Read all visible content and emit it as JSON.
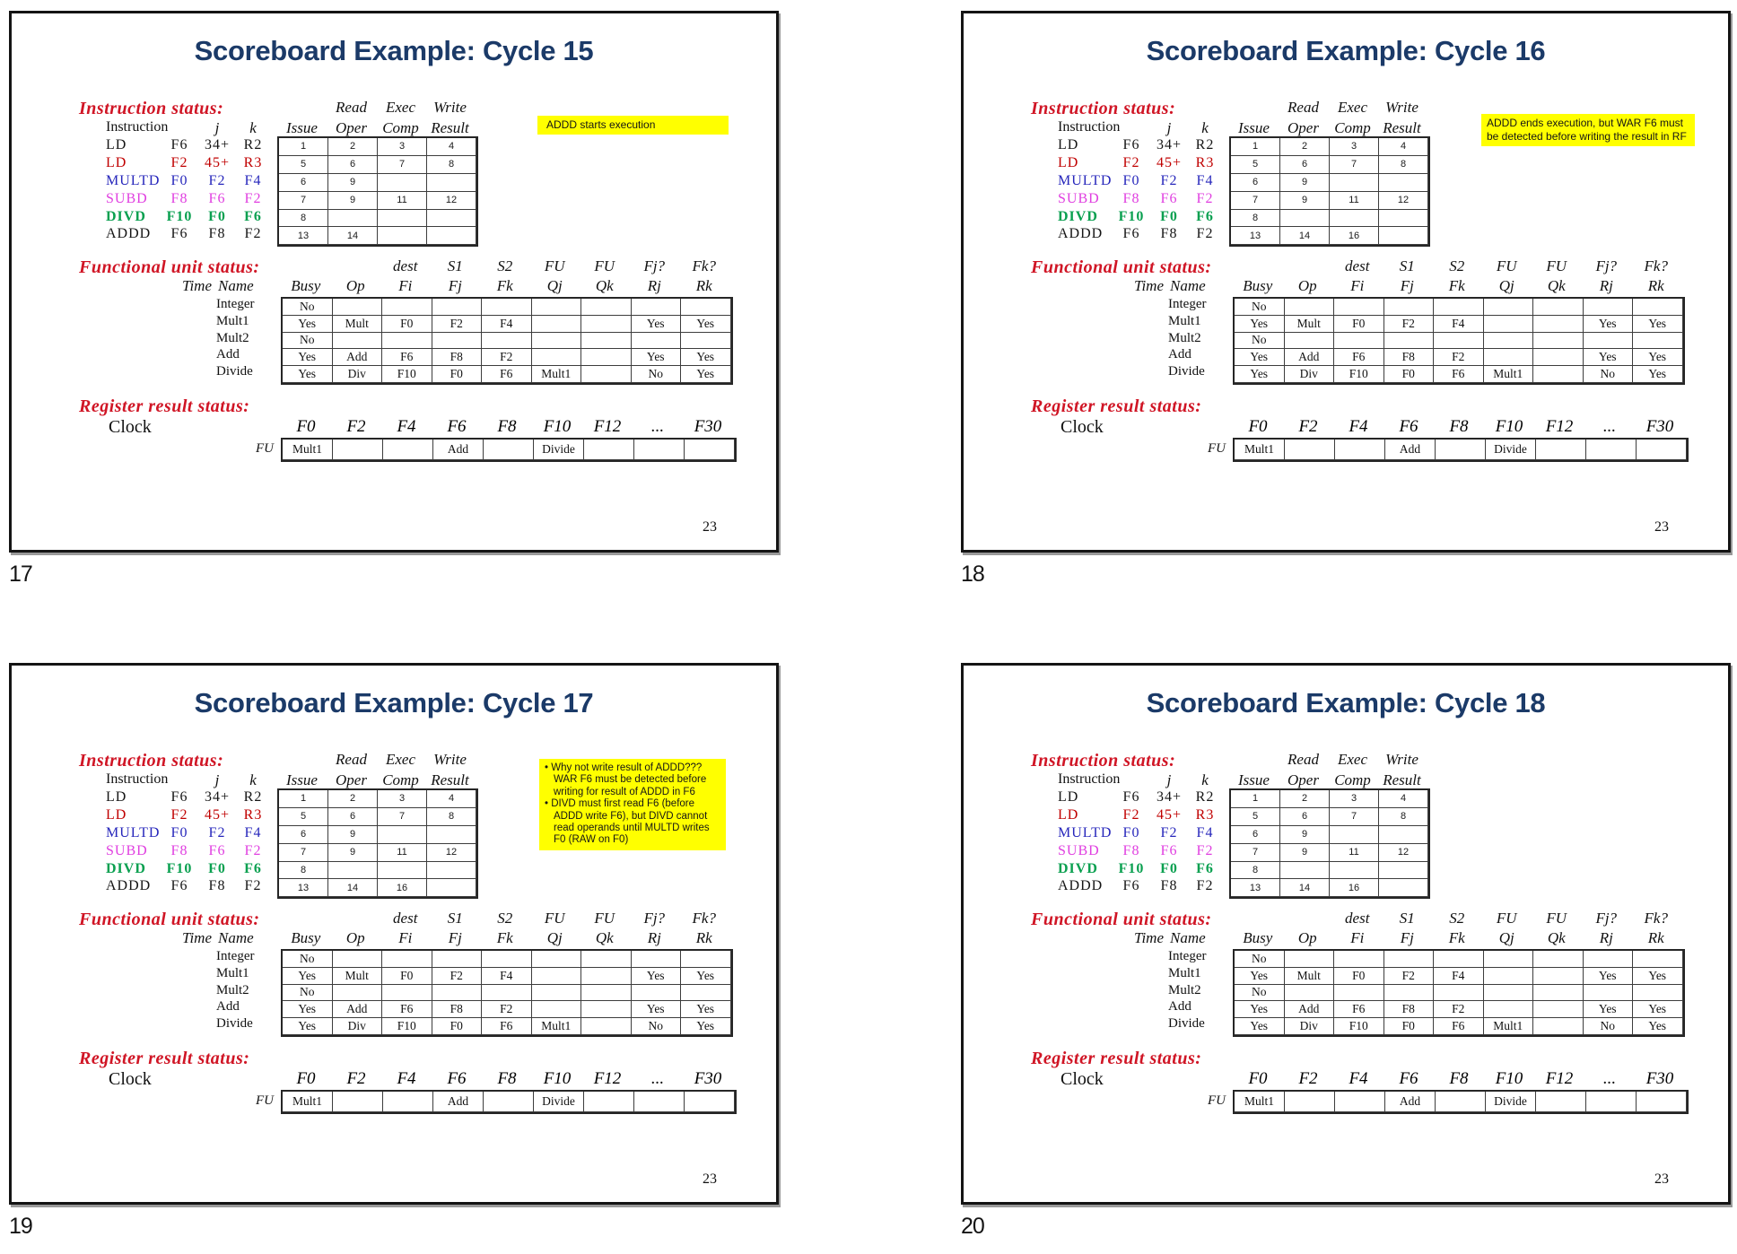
{
  "colors": {
    "title": "#1b3a68",
    "heading_red": "#d01525",
    "instr_red": "#c00000",
    "instr_blue": "#2626bb",
    "instr_magenta": "#e03fe0",
    "instr_green": "#0aa050",
    "note_bg": "#ffff00"
  },
  "page": {
    "slide_numbers": [
      "17",
      "18",
      "19",
      "20"
    ],
    "page_number": "23",
    "bullet_char": "•"
  },
  "shared": {
    "headings": {
      "instruction": "Instruction status:",
      "functional": "Functional unit status:",
      "register": "Register result status:"
    },
    "instr": {
      "h1": [
        "Read",
        "Exec",
        "Write"
      ],
      "h2": {
        "instruction": "Instruction",
        "j": "j",
        "k": "k",
        "cols": [
          "Issue",
          "Oper",
          "Comp",
          "Result"
        ]
      },
      "rows": [
        {
          "name": "LD",
          "i": "F6",
          "j": "34+",
          "k": "R2",
          "color": "black"
        },
        {
          "name": "LD",
          "i": "F2",
          "j": "45+",
          "k": "R3",
          "color": "red"
        },
        {
          "name": "MULTD",
          "i": "F0",
          "j": "F2",
          "k": "F4",
          "color": "blue"
        },
        {
          "name": "SUBD",
          "i": "F8",
          "j": "F6",
          "k": "F2",
          "color": "magenta"
        },
        {
          "name": "DIVD",
          "i": "F10",
          "j": "F0",
          "k": "F6",
          "color": "green"
        },
        {
          "name": "ADDD",
          "i": "F6",
          "j": "F8",
          "k": "F2",
          "color": "black"
        }
      ]
    },
    "fu": {
      "h1": [
        "dest",
        "S1",
        "S2",
        "FU",
        "FU",
        "Fj?",
        "Fk?"
      ],
      "h2": {
        "time": "Time",
        "name": "Name",
        "cols": [
          "Busy",
          "Op",
          "Fi",
          "Fj",
          "Fk",
          "Qj",
          "Qk",
          "Rj",
          "Rk"
        ]
      },
      "rows": [
        {
          "name": "Integer",
          "cells": [
            "No",
            "",
            "",
            "",
            "",
            "",
            "",
            "",
            ""
          ]
        },
        {
          "name": "Mult1",
          "cells": [
            "Yes",
            "Mult",
            "F0",
            "F2",
            "F4",
            "",
            "",
            "Yes",
            "Yes"
          ]
        },
        {
          "name": "Mult2",
          "cells": [
            "No",
            "",
            "",
            "",
            "",
            "",
            "",
            "",
            ""
          ]
        },
        {
          "name": "Add",
          "cells": [
            "Yes",
            "Add",
            "F6",
            "F8",
            "F2",
            "",
            "",
            "Yes",
            "Yes"
          ]
        },
        {
          "name": "Divide",
          "cells": [
            "Yes",
            "Div",
            "F10",
            "F0",
            "F6",
            "Mult1",
            "",
            "No",
            "Yes"
          ]
        }
      ]
    },
    "reg": {
      "clock": "Clock",
      "fu": "FU",
      "headers": [
        "F0",
        "F2",
        "F4",
        "F6",
        "F8",
        "F10",
        "F12",
        "...",
        "F30"
      ],
      "values": [
        "Mult1",
        "",
        "",
        "Add",
        "",
        "Divide",
        "",
        "",
        ""
      ]
    }
  },
  "slides": [
    {
      "title": "Scoreboard Example: Cycle 15",
      "cells": [
        [
          "1",
          "2",
          "3",
          "4"
        ],
        [
          "5",
          "6",
          "7",
          "8"
        ],
        [
          "6",
          "9",
          "",
          ""
        ],
        [
          "7",
          "9",
          "11",
          "12"
        ],
        [
          "8",
          "",
          "",
          ""
        ],
        [
          "13",
          "14",
          "",
          ""
        ]
      ],
      "note": {
        "kind": "plain",
        "text": "ADDD starts execution"
      }
    },
    {
      "title": "Scoreboard Example: Cycle 16",
      "cells": [
        [
          "1",
          "2",
          "3",
          "4"
        ],
        [
          "5",
          "6",
          "7",
          "8"
        ],
        [
          "6",
          "9",
          "",
          ""
        ],
        [
          "7",
          "9",
          "11",
          "12"
        ],
        [
          "8",
          "",
          "",
          ""
        ],
        [
          "13",
          "14",
          "16",
          ""
        ]
      ],
      "note": {
        "kind": "plain",
        "text": "ADDD ends execution, but WAR F6 must be detected before writing the result in RF"
      }
    },
    {
      "title": "Scoreboard Example: Cycle 17",
      "cells": [
        [
          "1",
          "2",
          "3",
          "4"
        ],
        [
          "5",
          "6",
          "7",
          "8"
        ],
        [
          "6",
          "9",
          "",
          ""
        ],
        [
          "7",
          "9",
          "11",
          "12"
        ],
        [
          "8",
          "",
          "",
          ""
        ],
        [
          "13",
          "14",
          "16",
          ""
        ]
      ],
      "note": {
        "kind": "bullets",
        "items": [
          "Why not write result of ADDD??? WAR F6 must be detected before writing for result of ADDD in F6",
          "DIVD must first read F6 (before ADDD write F6), but DIVD cannot read operands until MULTD writes F0 (RAW on F0)"
        ]
      }
    },
    {
      "title": "Scoreboard Example: Cycle 18",
      "cells": [
        [
          "1",
          "2",
          "3",
          "4"
        ],
        [
          "5",
          "6",
          "7",
          "8"
        ],
        [
          "6",
          "9",
          "",
          ""
        ],
        [
          "7",
          "9",
          "11",
          "12"
        ],
        [
          "8",
          "",
          "",
          ""
        ],
        [
          "13",
          "14",
          "16",
          ""
        ]
      ],
      "note": null
    }
  ]
}
